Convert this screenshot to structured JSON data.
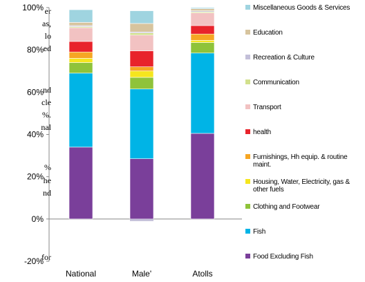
{
  "chart_data": {
    "type": "bar",
    "stacked": true,
    "categories": [
      "National",
      "Male'",
      "Atolls"
    ],
    "ylim": [
      -20,
      100
    ],
    "yticks": [
      "-20%",
      "0%",
      "20%",
      "40%",
      "60%",
      "80%",
      "100%"
    ],
    "grid": false,
    "legend_position": "right",
    "series": [
      {
        "name": "Food Excluding Fish",
        "color": "#7a3f9a",
        "values": [
          34,
          28.5,
          40.5
        ]
      },
      {
        "name": "Fish",
        "color": "#00b4e6",
        "values": [
          35,
          33,
          38
        ]
      },
      {
        "name": "Clothing and Footwear",
        "color": "#8fc33a",
        "values": [
          5,
          5.5,
          5
        ]
      },
      {
        "name": "Housing, Water, Electricity, gas & other fuels",
        "color": "#f5e61e",
        "values": [
          2,
          3,
          1
        ]
      },
      {
        "name": "Furnishings, Hh equip. & routine maint.",
        "color": "#f6a623",
        "values": [
          3,
          2,
          3
        ]
      },
      {
        "name": "health",
        "color": "#e8232b",
        "values": [
          5,
          7.5,
          4
        ]
      },
      {
        "name": "Transport",
        "color": "#f2c2c2",
        "values": [
          6.5,
          7.5,
          6
        ]
      },
      {
        "name": "Communication",
        "color": "#d2e08c",
        "values": [
          0.5,
          1,
          0.5
        ]
      },
      {
        "name": "Recreation & Culture",
        "color": "#c3bfd9",
        "values": [
          0.5,
          0.5,
          0.5
        ]
      },
      {
        "name": "Education",
        "color": "#d7c49e",
        "values": [
          1.5,
          4,
          1
        ]
      },
      {
        "name": "Miscellaneous Goods & Services",
        "color": "#9fd4e0",
        "values": [
          6,
          6,
          0.5
        ]
      }
    ],
    "negative_values": {
      "Male'": -1
    }
  },
  "background_text": {
    "lines": [
      "er",
      "as,",
      "lo",
      "ed",
      "nd",
      "cle",
      "%.",
      "nal",
      "%",
      "he",
      "nd",
      "for"
    ]
  }
}
